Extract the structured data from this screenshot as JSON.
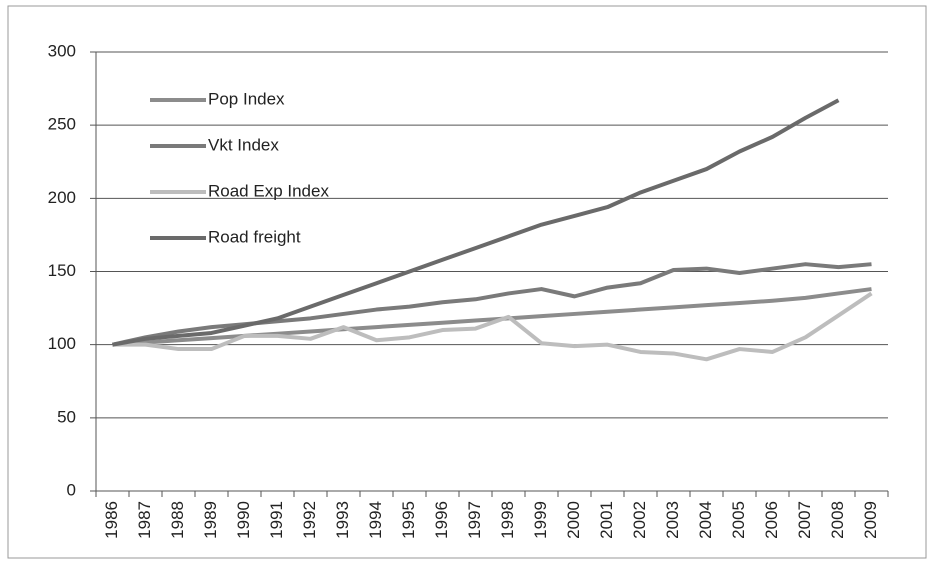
{
  "chart_data": {
    "type": "line",
    "categories": [
      "1986",
      "1987",
      "1988",
      "1989",
      "1990",
      "1991",
      "1992",
      "1993",
      "1994",
      "1995",
      "1996",
      "1997",
      "1998",
      "1999",
      "2000",
      "2001",
      "2002",
      "2003",
      "2004",
      "2005",
      "2006",
      "2007",
      "2008",
      "2009"
    ],
    "series": [
      {
        "name": "Pop Index",
        "color": "#8c8c8c",
        "values": [
          100,
          101.5,
          103,
          104.5,
          106,
          107.5,
          109,
          110.5,
          112,
          113.5,
          115,
          116.5,
          118,
          119.5,
          121,
          122.5,
          124,
          125.5,
          127,
          128.5,
          130,
          132,
          135,
          138
        ]
      },
      {
        "name": "Vkt Index",
        "color": "#7a7a7a",
        "values": [
          100,
          105,
          109,
          112,
          114,
          116,
          118,
          121,
          124,
          126,
          129,
          131,
          135,
          138,
          133,
          139,
          142,
          151,
          152,
          149,
          152,
          155,
          153,
          155
        ]
      },
      {
        "name": "Road Exp Index",
        "color": "#bdbdbd",
        "values": [
          100,
          100,
          97,
          97,
          106,
          106,
          104,
          112,
          103,
          105,
          110,
          111,
          119,
          101,
          99,
          100,
          95,
          94,
          90,
          97,
          95,
          105,
          120,
          135
        ]
      },
      {
        "name": "Road freight",
        "color": "#6a6a6a",
        "values": [
          100,
          104,
          106,
          108,
          113,
          118,
          126,
          134,
          142,
          150,
          158,
          166,
          174,
          182,
          188,
          194,
          204,
          212,
          220,
          232,
          242,
          255,
          267,
          null
        ]
      }
    ],
    "ylim": [
      0,
      300
    ],
    "yticks": [
      0,
      50,
      100,
      150,
      200,
      250,
      300
    ],
    "grid": true,
    "legend": "top-left"
  }
}
